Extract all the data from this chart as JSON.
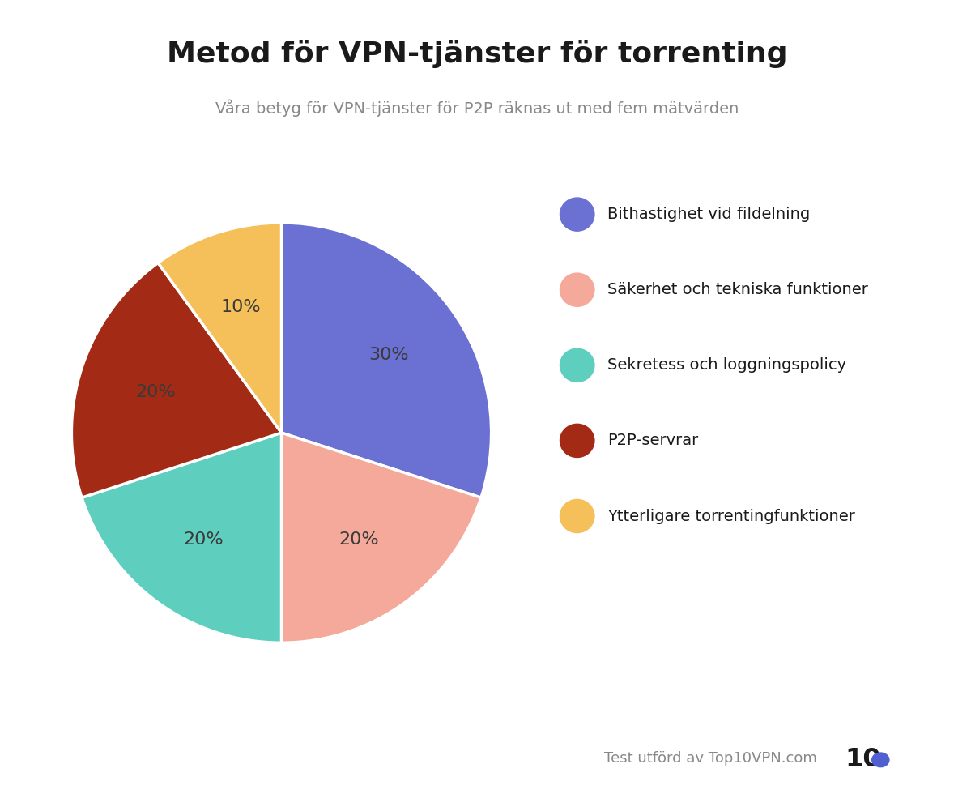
{
  "title": "Metod för VPN-tjänster för torrenting",
  "subtitle": "Våra betyg för VPN-tjänster för P2P räknas ut med fem mätvärden",
  "values": [
    30,
    20,
    20,
    20,
    10
  ],
  "labels": [
    "30%",
    "20%",
    "20%",
    "20%",
    "10%"
  ],
  "colors": [
    "#6B70D3",
    "#F4A99A",
    "#5ECFBE",
    "#A32A14",
    "#F5C05A"
  ],
  "legend_labels": [
    "Bithastighet vid fildelning",
    "Säkerhet och tekniska funktioner",
    "Sekretess och loggningspolicy",
    "P2P-servrar",
    "Ytterligare torrentingfunktioner"
  ],
  "startangle": 90,
  "background_color": "#FFFFFF",
  "title_fontsize": 26,
  "subtitle_fontsize": 14,
  "label_fontsize": 16,
  "label_color": "#3a3a3a",
  "legend_fontsize": 14,
  "footer_text": "Test utförd av Top10VPN.com",
  "footer_fontsize": 13
}
